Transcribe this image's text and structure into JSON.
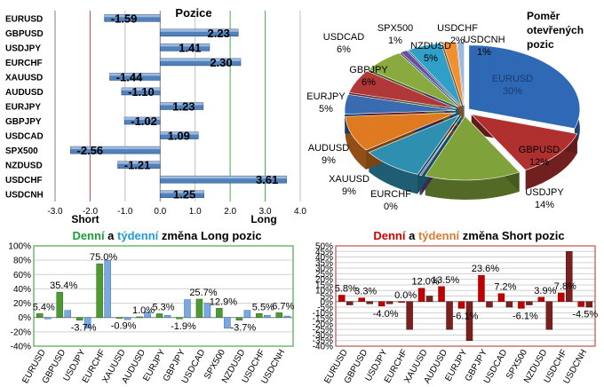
{
  "colors": {
    "bar_blue": "#4f81bd",
    "long_green": "#5a9e3a",
    "short_red": "#c00000",
    "grid_green": "#4ea84e",
    "grid_red": "#c0504d",
    "title_green": "#1a9e3a",
    "title_blue": "#1e9bd7",
    "title_red": "#d00000",
    "title_orange": "#e07a30"
  },
  "positions_chart": {
    "title": "Pozice",
    "short_label": "Short",
    "long_label": "Long",
    "chart_data": {
      "type": "bar",
      "orientation": "horizontal",
      "categories": [
        "EURUSD",
        "GBPUSD",
        "USDJPY",
        "EURCHF",
        "XAUUSD",
        "AUDUSD",
        "EURJPY",
        "GBPJPY",
        "USDCAD",
        "SPX500",
        "NZDUSD",
        "USDCHF",
        "USDCNH"
      ],
      "values": [
        -1.59,
        2.23,
        1.41,
        2.3,
        -1.44,
        -1.1,
        1.23,
        -1.02,
        1.09,
        -2.56,
        -1.21,
        3.61,
        1.25
      ],
      "value_labels": [
        "-1.59",
        "2.23",
        "1.41",
        "2.30",
        "-1.44",
        "-1.10",
        "1.23",
        "-1.02",
        "1.09",
        "-2.56",
        "-1.21",
        "3.61",
        "1.25"
      ],
      "xlim": [
        -3.0,
        4.0
      ],
      "ticks": [
        "-3.0",
        "-2.0",
        "-1.0",
        "0.0",
        "1.0",
        "2.0",
        "3.0",
        "4.0"
      ]
    }
  },
  "pie_chart": {
    "title_lines": [
      "Poměr",
      "otevřených",
      "pozic"
    ],
    "chart_data": {
      "type": "pie",
      "slices": [
        {
          "name": "EURUSD",
          "value": 30,
          "label": "30%",
          "color": "#2f68b5"
        },
        {
          "name": "GBPUSD",
          "value": 12,
          "label": "12%",
          "color": "#b03030"
        },
        {
          "name": "USDJPY",
          "value": 14,
          "label": "14%",
          "color": "#7fa33a"
        },
        {
          "name": "EURCHF",
          "value": 0,
          "label": "0%",
          "color": "#6a4ba0"
        },
        {
          "name": "XAUUSD",
          "value": 9,
          "label": "9%",
          "color": "#2e8fb0"
        },
        {
          "name": "AUDUSD",
          "value": 9,
          "label": "9%",
          "color": "#e07a20"
        },
        {
          "name": "EURJPY",
          "value": 5,
          "label": "5%",
          "color": "#3a6ab0"
        },
        {
          "name": "GBPJPY",
          "value": 6,
          "label": "6%",
          "color": "#b03838"
        },
        {
          "name": "USDCAD",
          "value": 6,
          "label": "6%",
          "color": "#8aaa40"
        },
        {
          "name": "SPX500",
          "value": 1,
          "label": "1%",
          "color": "#6a4ba0"
        },
        {
          "name": "NZDUSD",
          "value": 5,
          "label": "5%",
          "color": "#30a0c8"
        },
        {
          "name": "USDCHF",
          "value": 2,
          "label": "2%",
          "color": "#f09030"
        },
        {
          "name": "USDCNH",
          "value": 1,
          "label": "1%",
          "color": "#9ab8e0"
        }
      ]
    }
  },
  "long_chart": {
    "title_parts": [
      "Denní",
      " a ",
      "týdenní",
      " změna Long pozic"
    ],
    "chart_data": {
      "type": "bar",
      "categories": [
        "EURUSD",
        "GBPUSD",
        "USDJPY",
        "EURCHF",
        "XAUUSD",
        "AUDUSD",
        "EURJPY",
        "GBPJPY",
        "USDCAD",
        "SPX500",
        "NZDUSD",
        "USDCHF",
        "USDCNH"
      ],
      "series": [
        {
          "values": [
            5.4,
            35.4,
            -3.7,
            75.0,
            -0.9,
            1.0,
            5.3,
            -1.9,
            25.7,
            12.9,
            -3.7,
            5.5,
            6.7
          ]
        },
        {
          "values": [
            -2.0,
            10.0,
            -15.0,
            80.0,
            -3.0,
            8.0,
            3.0,
            25.0,
            20.0,
            -15.0,
            10.0,
            3.0,
            2.0
          ]
        }
      ],
      "value_labels": [
        "5.4%",
        "35.4%",
        "-3.7%",
        "75.0%",
        "-0.9%",
        "1.0%",
        "5.3%",
        "-1.9%",
        "25.7%",
        "12.9%",
        "-3.7%",
        "5.5%",
        "6.7%"
      ],
      "ylim": [
        -40,
        100
      ],
      "yticks": [
        "-40%",
        "-20%",
        "0%",
        "20%",
        "40%",
        "60%",
        "80%",
        "100%"
      ]
    }
  },
  "short_chart": {
    "title_parts": [
      "Denní",
      " a ",
      "týdenní",
      " změna Short pozic"
    ],
    "chart_data": {
      "type": "bar",
      "categories": [
        "EURUSD",
        "GBPUSD",
        "USDJPY",
        "EURCHF",
        "XAUUSD",
        "AUDUSD",
        "EURJPY",
        "GBPJPY",
        "USDCAD",
        "SPX500",
        "NZDUSD",
        "USDCHF",
        "USDCNH"
      ],
      "series": [
        {
          "values": [
            5.8,
            3.3,
            -4.0,
            0.0,
            12.0,
            13.5,
            -6.1,
            23.6,
            7.2,
            -6.1,
            3.9,
            7.8,
            -4.5
          ]
        },
        {
          "values": [
            -3.0,
            -2.0,
            -2.0,
            -25.0,
            5.0,
            -25.0,
            -35.0,
            -5.0,
            -5.0,
            -3.0,
            -25.0,
            45.0,
            -5.0
          ]
        }
      ],
      "value_labels": [
        "5.8%",
        "3.3%",
        "-4.0%",
        "0.0%",
        "12.0%",
        "13.5%",
        "-6.1%",
        "23.6%",
        "7.2%",
        "-6.1%",
        "3.9%",
        "7.8%",
        "-4.5%"
      ],
      "ylim": [
        -40,
        50
      ],
      "yticks": [
        "-40%",
        "-35%",
        "-30%",
        "-25%",
        "-20%",
        "-15%",
        "-10%",
        "-5%",
        "0%",
        "5%",
        "10%",
        "15%",
        "20%",
        "25%",
        "30%",
        "35%",
        "40%",
        "45%",
        "50%"
      ]
    }
  }
}
